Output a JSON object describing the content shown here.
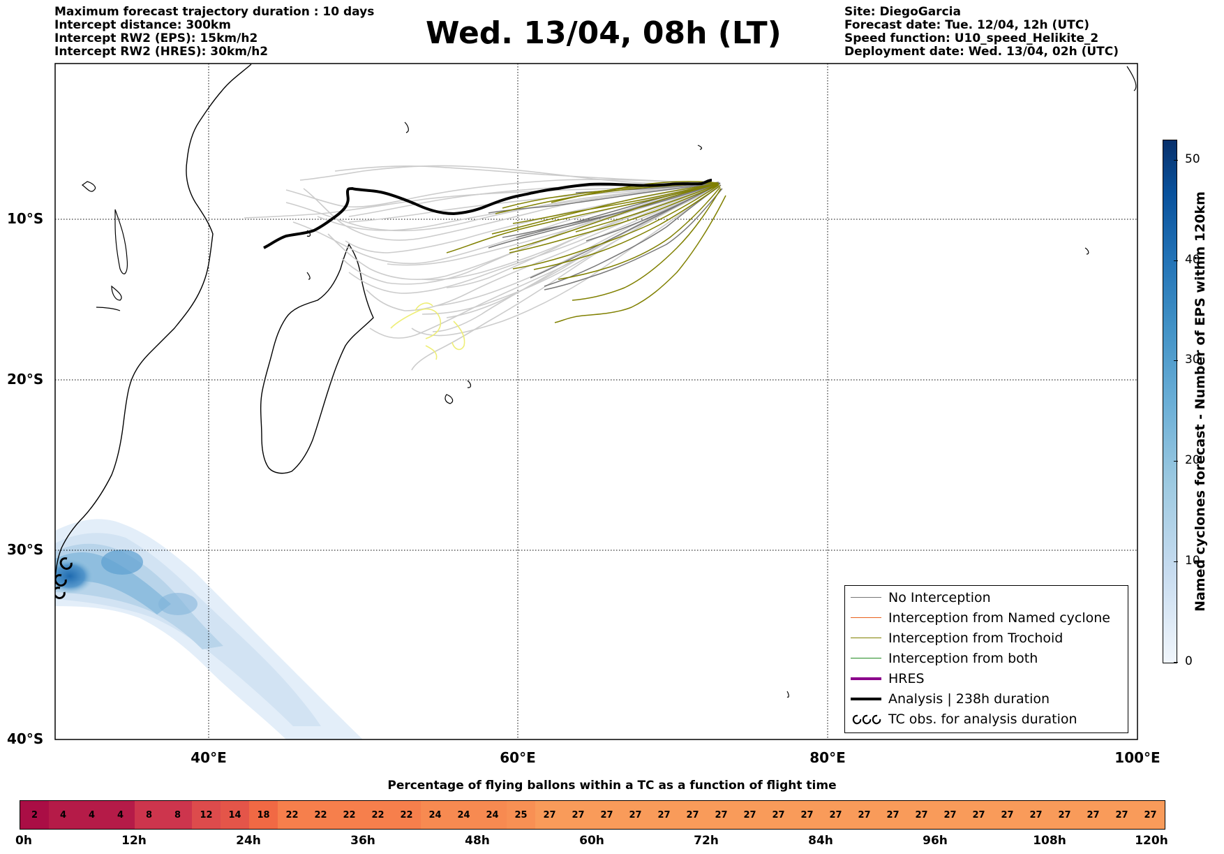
{
  "header": {
    "left_lines": [
      "Maximum forecast trajectory duration : 10 days",
      "Intercept distance: 300km",
      "Intercept RW2 (EPS):  15km/h2",
      "Intercept RW2 (HRES): 30km/h2"
    ],
    "title": "Wed. 13/04, 08h (LT)",
    "right_lines": [
      "Site: DiegoGarcia",
      "Forecast date: Tue. 12/04, 12h (UTC)",
      "Speed function: U10_speed_Helikite_2",
      "Deployment date: Wed. 13/04, 02h (UTC)"
    ]
  },
  "map": {
    "lat_labels": [
      "10°S",
      "20°S",
      "30°S",
      "40°S"
    ],
    "lon_labels": [
      "40°E",
      "60°E",
      "80°E",
      "100°E"
    ],
    "colors": {
      "no_interception": "#777777",
      "named_cyclone": "#e8601c",
      "trochoid": "#808000",
      "both": "#228b22",
      "hres": "#8b008b",
      "analysis": "#000000",
      "eps_light": "#cccccc",
      "eps_yellow": "#eeee77"
    }
  },
  "legend": {
    "items": [
      {
        "label": "No Interception",
        "type": "no_interception"
      },
      {
        "label": "Interception from Named cyclone",
        "type": "named_cyclone"
      },
      {
        "label": "Interception from Trochoid",
        "type": "trochoid"
      },
      {
        "label": "Interception from both",
        "type": "both"
      },
      {
        "label": "HRES",
        "type": "hres"
      },
      {
        "label": "Analysis | 238h duration",
        "type": "analysis"
      },
      {
        "label": "TC obs. for analysis duration",
        "type": "tc_obs"
      }
    ]
  },
  "colorbar": {
    "title": "Named cyclones forecast - Number of EPS within 120km",
    "min": 0,
    "max": 52,
    "ticks": [
      "0",
      "10",
      "20",
      "30",
      "40",
      "50"
    ]
  },
  "flight_time_bar": {
    "title": "Percentage of flying ballons within a TC as a function of flight time",
    "values": [
      2,
      4,
      4,
      4,
      8,
      8,
      12,
      14,
      18,
      22,
      22,
      22,
      22,
      22,
      24,
      24,
      24,
      25,
      27,
      27,
      27,
      27,
      27,
      27,
      27,
      27,
      27,
      27,
      27,
      27,
      27,
      27,
      27,
      27,
      27,
      27,
      27,
      27,
      27,
      27
    ],
    "time_labels": [
      "0h",
      "12h",
      "24h",
      "36h",
      "48h",
      "60h",
      "72h",
      "84h",
      "96h",
      "108h",
      "120h"
    ]
  }
}
